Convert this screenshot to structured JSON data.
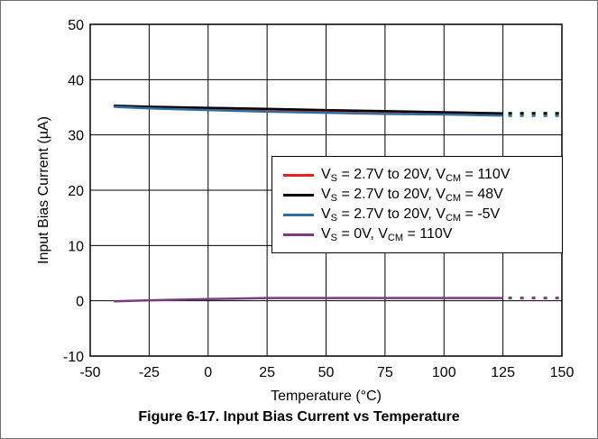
{
  "chart_data": {
    "type": "line",
    "caption": "Figure 6-17. Input Bias Current vs Temperature",
    "xlabel": "Temperature (°C)",
    "ylabel": "Input Bias Current (µA)",
    "xlim": [
      -50,
      150
    ],
    "ylim": [
      -10,
      50
    ],
    "x_ticks": [
      "-50",
      "-25",
      "0",
      "25",
      "50",
      "75",
      "100",
      "125",
      "150"
    ],
    "y_ticks": [
      "-10",
      "0",
      "10",
      "20",
      "30",
      "40",
      "50"
    ],
    "grid": true,
    "legend_position": "center-right",
    "x": [
      -40,
      -25,
      0,
      25,
      50,
      75,
      100,
      125
    ],
    "series": [
      {
        "name_parts": [
          "V",
          "S",
          " = 2.7V to 20V, V",
          "CM",
          " = 110V"
        ],
        "color": "#e8201e",
        "values": [
          35.2,
          35.0,
          34.8,
          34.6,
          34.4,
          34.2,
          34.0,
          33.8
        ],
        "extension_to": 150
      },
      {
        "name_parts": [
          "V",
          "S",
          " = 2.7V to 20V, V",
          "CM",
          " = 48V"
        ],
        "color": "#000000",
        "values": [
          35.3,
          35.1,
          34.9,
          34.7,
          34.5,
          34.3,
          34.1,
          33.9
        ],
        "extension_to": 150
      },
      {
        "name_parts": [
          "V",
          "S",
          " = 2.7V to 20V, V",
          "CM",
          " = -5V"
        ],
        "color": "#2e6d9e",
        "values": [
          35.1,
          34.8,
          34.5,
          34.2,
          34.0,
          33.8,
          33.7,
          33.5
        ],
        "extension_to": 150
      },
      {
        "name_parts": [
          "V",
          "S",
          " = 0V, V",
          "CM",
          " = 110V"
        ],
        "color": "#7b3a7d",
        "values": [
          -0.1,
          0.1,
          0.3,
          0.5,
          0.5,
          0.5,
          0.5,
          0.5
        ],
        "extension_to": 150
      }
    ]
  }
}
